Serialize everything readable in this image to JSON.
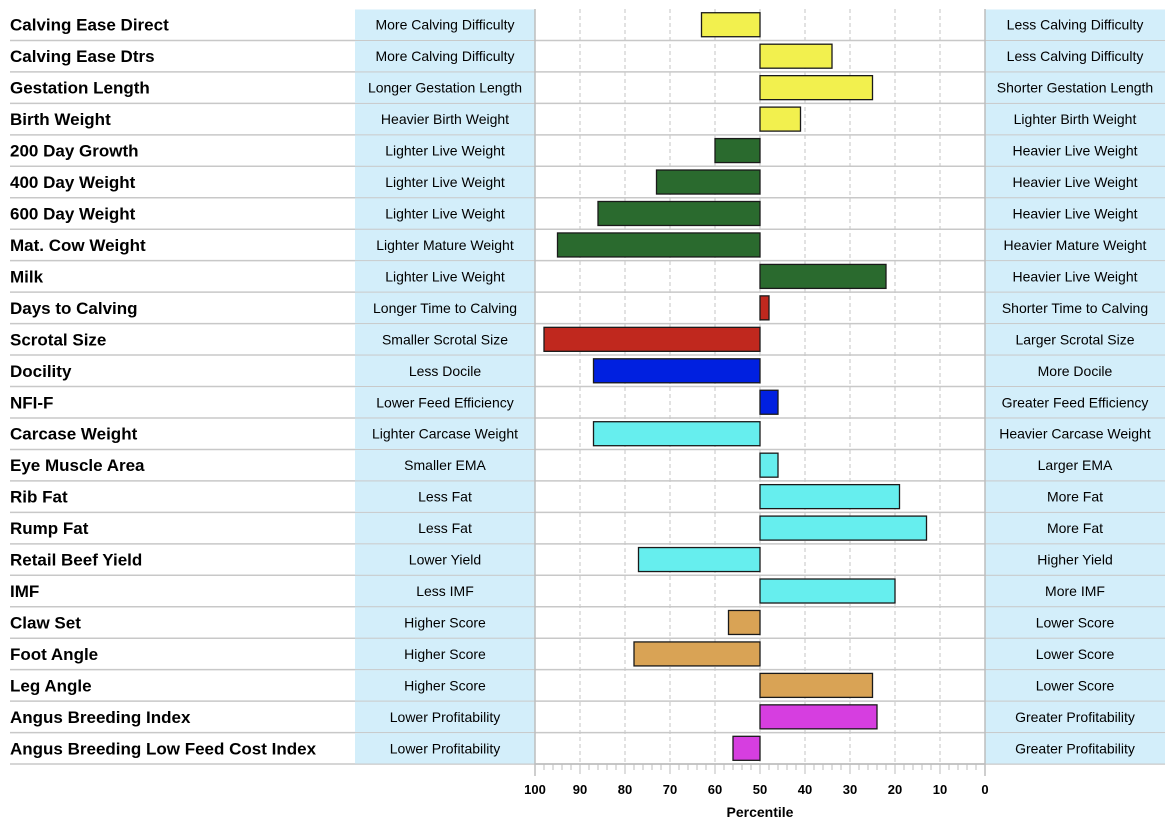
{
  "chart_data": {
    "type": "bar",
    "orientation": "horizontal",
    "xlabel": "Percentile",
    "xlim": [
      100,
      0
    ],
    "baseline": 50,
    "x_ticks": [
      100,
      90,
      80,
      70,
      60,
      50,
      40,
      30,
      20,
      10,
      0
    ],
    "grid": true,
    "rows": [
      {
        "trait": "Calving Ease Direct",
        "left": "More Calving Difficulty",
        "right": "Less Calving Difficulty",
        "value": 63,
        "color": "#f2f04e"
      },
      {
        "trait": "Calving Ease Dtrs",
        "left": "More Calving Difficulty",
        "right": "Less Calving Difficulty",
        "value": 34,
        "color": "#f2f04e"
      },
      {
        "trait": "Gestation Length",
        "left": "Longer Gestation Length",
        "right": "Shorter Gestation Length",
        "value": 25,
        "color": "#f2f04e"
      },
      {
        "trait": "Birth Weight",
        "left": "Heavier Birth Weight",
        "right": "Lighter Birth Weight",
        "value": 41,
        "color": "#f2f04e"
      },
      {
        "trait": "200 Day Growth",
        "left": "Lighter Live Weight",
        "right": "Heavier Live Weight",
        "value": 60,
        "color": "#2a6a2e"
      },
      {
        "trait": "400 Day Weight",
        "left": "Lighter Live Weight",
        "right": "Heavier Live Weight",
        "value": 73,
        "color": "#2a6a2e"
      },
      {
        "trait": "600 Day Weight",
        "left": "Lighter Live Weight",
        "right": "Heavier Live Weight",
        "value": 86,
        "color": "#2a6a2e"
      },
      {
        "trait": "Mat. Cow Weight",
        "left": "Lighter Mature Weight",
        "right": "Heavier Mature Weight",
        "value": 95,
        "color": "#2a6a2e"
      },
      {
        "trait": "Milk",
        "left": "Lighter Live Weight",
        "right": "Heavier Live Weight",
        "value": 22,
        "color": "#2a6a2e"
      },
      {
        "trait": "Days to Calving",
        "left": "Longer Time to Calving",
        "right": "Shorter Time to Calving",
        "value": 48,
        "color": "#c0281e"
      },
      {
        "trait": "Scrotal Size",
        "left": "Smaller Scrotal Size",
        "right": "Larger Scrotal Size",
        "value": 98,
        "color": "#c0281e"
      },
      {
        "trait": "Docility",
        "left": "Less Docile",
        "right": "More Docile",
        "value": 87,
        "color": "#0020e0"
      },
      {
        "trait": "NFI-F",
        "left": "Lower Feed Efficiency",
        "right": "Greater Feed Efficiency",
        "value": 46,
        "color": "#0020e0"
      },
      {
        "trait": "Carcase Weight",
        "left": "Lighter Carcase Weight",
        "right": "Heavier Carcase Weight",
        "value": 87,
        "color": "#66eeee"
      },
      {
        "trait": "Eye Muscle Area",
        "left": "Smaller EMA",
        "right": "Larger EMA",
        "value": 46,
        "color": "#66eeee"
      },
      {
        "trait": "Rib Fat",
        "left": "Less Fat",
        "right": "More Fat",
        "value": 19,
        "color": "#66eeee"
      },
      {
        "trait": "Rump Fat",
        "left": "Less Fat",
        "right": "More Fat",
        "value": 13,
        "color": "#66eeee"
      },
      {
        "trait": "Retail Beef Yield",
        "left": "Lower Yield",
        "right": "Higher Yield",
        "value": 77,
        "color": "#66eeee"
      },
      {
        "trait": "IMF",
        "left": "Less IMF",
        "right": "More IMF",
        "value": 20,
        "color": "#66eeee"
      },
      {
        "trait": "Claw Set",
        "left": "Higher Score",
        "right": "Lower Score",
        "value": 57,
        "color": "#d9a355"
      },
      {
        "trait": "Foot Angle",
        "left": "Higher Score",
        "right": "Lower Score",
        "value": 78,
        "color": "#d9a355"
      },
      {
        "trait": "Leg Angle",
        "left": "Higher Score",
        "right": "Lower Score",
        "value": 25,
        "color": "#d9a355"
      },
      {
        "trait": "Angus Breeding Index",
        "left": "Lower Profitability",
        "right": "Greater Profitability",
        "value": 24,
        "color": "#d63ee0"
      },
      {
        "trait": "Angus Breeding Low Feed Cost Index",
        "left": "Lower Profitability",
        "right": "Greater Profitability",
        "value": 56,
        "color": "#d63ee0"
      }
    ]
  }
}
